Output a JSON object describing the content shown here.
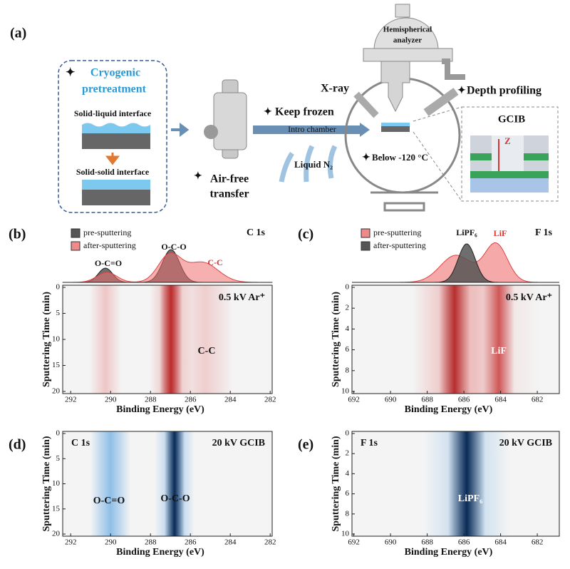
{
  "diagram": {
    "label": "(a)",
    "pretreatment": [
      "Cryogenic",
      "pretreatment"
    ],
    "liquid_interface": "Solid-liquid interface",
    "solid_interface": "Solid-solid interface",
    "transfer": [
      "Air-free",
      "transfer"
    ],
    "keep_frozen": "Keep frozen",
    "intro": "Intro chamber",
    "liquid_n2": "Liquid N₂",
    "xray": "X-ray",
    "analyzer": [
      "Hemispherical",
      "analyzer"
    ],
    "depth": "Depth profiling",
    "below": "Below -120 °C",
    "gcib": "GCIB",
    "z": "Z"
  },
  "chart_data": [
    {
      "type": "heatmap",
      "label": "(b)",
      "title": "C 1s",
      "subtitle": "0.5 kV Ar⁺",
      "xlabel": "Binding Energy (eV)",
      "ylabel": "Sputtering Time (min)",
      "xlim": [
        292.4,
        281.9
      ],
      "xticks": [
        292,
        290,
        288,
        286,
        284,
        282
      ],
      "ylim": [
        0,
        20
      ],
      "yticks": [
        0,
        5,
        10,
        15,
        20
      ],
      "legend": [
        {
          "name": "pre-sputtering",
          "color": "#555555"
        },
        {
          "name": "after-sputtering",
          "color": "#ee8a8a"
        }
      ],
      "spectrum_annotations": [
        "O-C=O",
        "O-C-O",
        "C-C"
      ],
      "annotations": [
        "C-C"
      ]
    },
    {
      "type": "heatmap",
      "label": "(c)",
      "title": "F 1s",
      "subtitle": "0.5 kV Ar⁺",
      "xlabel": "Binding Energy (eV)",
      "ylabel": "Sputtering Time (min)",
      "xlim": [
        692.1,
        680.8
      ],
      "xticks": [
        692,
        690,
        688,
        686,
        684,
        682
      ],
      "ylim": [
        0,
        10
      ],
      "yticks": [
        0,
        2,
        4,
        6,
        8,
        10
      ],
      "legend": [
        {
          "name": "pre-sputtering",
          "color": "#ee8a8a"
        },
        {
          "name": "after-sputtering",
          "color": "#555555"
        }
      ],
      "spectrum_annotations": [
        "LiPF₆",
        "LiF"
      ],
      "annotations": [
        "LiF"
      ]
    },
    {
      "type": "heatmap",
      "label": "(d)",
      "title": "C 1s",
      "subtitle": "20 kV GCIB",
      "xlabel": "Binding Energy (eV)",
      "ylabel": "Sputtering Time (min)",
      "xlim": [
        292.4,
        281.9
      ],
      "xticks": [
        292,
        290,
        288,
        286,
        284,
        282
      ],
      "ylim": [
        0,
        20
      ],
      "yticks": [
        0,
        5,
        10,
        15,
        20
      ],
      "annotations": [
        "O-C=O",
        "O-C-O"
      ]
    },
    {
      "type": "heatmap",
      "label": "(e)",
      "title": "F 1s",
      "subtitle": "20 kV GCIB",
      "xlabel": "Binding Energy (eV)",
      "ylabel": "Sputtering Time (min)",
      "xlim": [
        692.1,
        680.8
      ],
      "xticks": [
        692,
        690,
        688,
        686,
        684,
        682
      ],
      "ylim": [
        0,
        10
      ],
      "yticks": [
        0,
        2,
        4,
        6,
        8,
        10
      ],
      "annotations": [
        "LiPF₆"
      ]
    }
  ]
}
